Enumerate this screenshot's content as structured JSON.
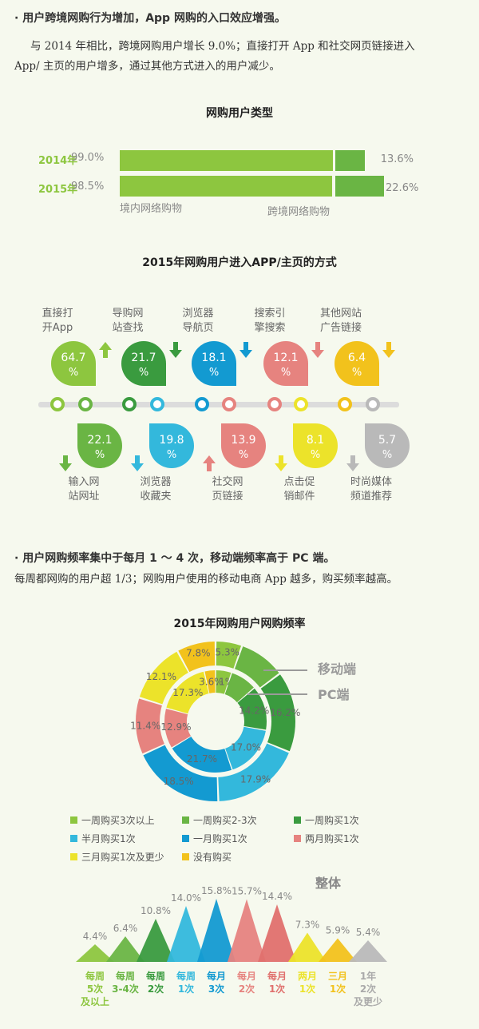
{
  "section1": {
    "heading": "· 用户跨境网购行为增加，App 网购的入口效应增强。",
    "text_line1": "与 2014 年相比，跨境网购用户增长 9.0%；直接打开 App 和社交网页链接进入",
    "text_line2": "App/ 主页的用户增多，通过其他方式进入的用户减少。"
  },
  "section2": {
    "heading": "· 用户网购频率集中于每月 1 ～ 4 次，移动端频率高于 PC 端。",
    "text_line1": "每周都网购的用户超 1/3；网购用户使用的移动电商 App 越多，购买频率越高。"
  },
  "colors": {
    "lightgreen": "#8dc63f",
    "midgreen": "#6ab544",
    "darkgreen": "#3a9b3f",
    "lightblue": "#33b8dc",
    "blue": "#139ad1",
    "salmon": "#e6837f",
    "yellow": "#ece32a",
    "gold": "#f2c21c",
    "gray": "#b9b9b9"
  },
  "chart_data": [
    {
      "type": "bar",
      "title": "网购用户类型",
      "categories": [
        "2014年",
        "2015年"
      ],
      "series": [
        {
          "name": "境内网络购物",
          "values": [
            99.0,
            98.5
          ],
          "labels": [
            "99.0%",
            "98.5%"
          ]
        },
        {
          "name": "跨境网络购物",
          "values": [
            13.6,
            22.6
          ],
          "labels": [
            "13.6%",
            "22.6%"
          ]
        }
      ]
    },
    {
      "type": "table",
      "title": "2015年网购用户进入APP/主页的方式",
      "items": [
        {
          "label_l1": "直接打",
          "label_l2": "开App",
          "value_l1": "64.7",
          "value_l2": "%",
          "trend": "up",
          "row": "top",
          "color": "#8dc63f"
        },
        {
          "label_l1": "导购网",
          "label_l2": "站查找",
          "value_l1": "21.7",
          "value_l2": "%",
          "trend": "down",
          "row": "top",
          "color": "#3a9b3f"
        },
        {
          "label_l1": "浏览器",
          "label_l2": "导航页",
          "value_l1": "18.1",
          "value_l2": "%",
          "trend": "down",
          "row": "top",
          "color": "#139ad1"
        },
        {
          "label_l1": "搜索引",
          "label_l2": "擎搜索",
          "value_l1": "12.1",
          "value_l2": "%",
          "trend": "down",
          "row": "top",
          "color": "#e6837f"
        },
        {
          "label_l1": "其他网站",
          "label_l2": "广告链接",
          "value_l1": "6.4",
          "value_l2": "%",
          "trend": "down",
          "row": "top",
          "color": "#f2c21c"
        },
        {
          "label_l1": "输入网",
          "label_l2": "站网址",
          "value_l1": "22.1",
          "value_l2": "%",
          "trend": "down",
          "row": "bottom",
          "color": "#6ab544"
        },
        {
          "label_l1": "浏览器",
          "label_l2": "收藏夹",
          "value_l1": "19.8",
          "value_l2": "%",
          "trend": "down",
          "row": "bottom",
          "color": "#33b8dc"
        },
        {
          "label_l1": "社交网",
          "label_l2": "页链接",
          "value_l1": "13.9",
          "value_l2": "%",
          "trend": "up",
          "row": "bottom",
          "color": "#e6837f"
        },
        {
          "label_l1": "点击促",
          "label_l2": "销邮件",
          "value_l1": "8.1",
          "value_l2": "%",
          "trend": "down",
          "row": "bottom",
          "color": "#ece32a"
        },
        {
          "label_l1": "时尚媒体",
          "label_l2": "频道推荐",
          "value_l1": "5.7",
          "value_l2": "%",
          "trend": "down",
          "row": "bottom",
          "color": "#b9b9b9"
        }
      ]
    },
    {
      "type": "pie",
      "title": "2015年网购用户网购频率",
      "ring_labels": [
        "移动端",
        "PC端"
      ],
      "legend": [
        "一周购买3次以上",
        "一周购买2-3次",
        "一周购买1次",
        "半月购买1次",
        "一月购买1次",
        "两月购买1次",
        "三月购买1次及更少",
        "没有购买"
      ],
      "colors": [
        "#8dc63f",
        "#6ab544",
        "#3a9b3f",
        "#33b8dc",
        "#139ad1",
        "#e6837f",
        "#ece32a",
        "#f2c21c"
      ],
      "series": [
        {
          "name": "移动端",
          "values": [
            5.3,
            9.3,
            16.2,
            17.9,
            18.5,
            11.4,
            12.1,
            7.8
          ],
          "labels": [
            "5.3%",
            "",
            "16.2%",
            "17.9%",
            "18.5%",
            "11.4%",
            "12.1%",
            "7.8%"
          ]
        },
        {
          "name": "PC端",
          "values": [
            5.1,
            8.6,
            14.2,
            17.0,
            21.7,
            12.9,
            17.3,
            3.6
          ],
          "labels": [
            "5.1%",
            "",
            "14.2%",
            "17.0%",
            "21.7%",
            "12.9%",
            "17.3%",
            "3.6%"
          ]
        }
      ]
    },
    {
      "type": "area",
      "title": "整体",
      "categories": [
        [
          "每周",
          "5次",
          "及以上"
        ],
        [
          "每周",
          "3-4次",
          ""
        ],
        [
          "每周",
          "2次",
          ""
        ],
        [
          "每周",
          "1次",
          ""
        ],
        [
          "每月",
          "3次",
          ""
        ],
        [
          "每月",
          "2次",
          ""
        ],
        [
          "每月",
          "1次",
          ""
        ],
        [
          "两月",
          "1次",
          ""
        ],
        [
          "三月",
          "1次",
          ""
        ],
        [
          "1年",
          "2次",
          "及更少"
        ]
      ],
      "values": [
        4.4,
        6.4,
        10.8,
        14.0,
        15.8,
        15.7,
        14.4,
        7.3,
        5.9,
        5.4
      ],
      "labels": [
        "4.4%",
        "6.4%",
        "10.8%",
        "14.0%",
        "15.8%",
        "15.7%",
        "14.4%",
        "7.3%",
        "5.9%",
        "5.4%"
      ],
      "colors": [
        "#8dc63f",
        "#6ab544",
        "#3a9b3f",
        "#33b8dc",
        "#139ad1",
        "#e6837f",
        "#e0706d",
        "#ece32a",
        "#f2c21c",
        "#b9b9b9"
      ]
    }
  ]
}
